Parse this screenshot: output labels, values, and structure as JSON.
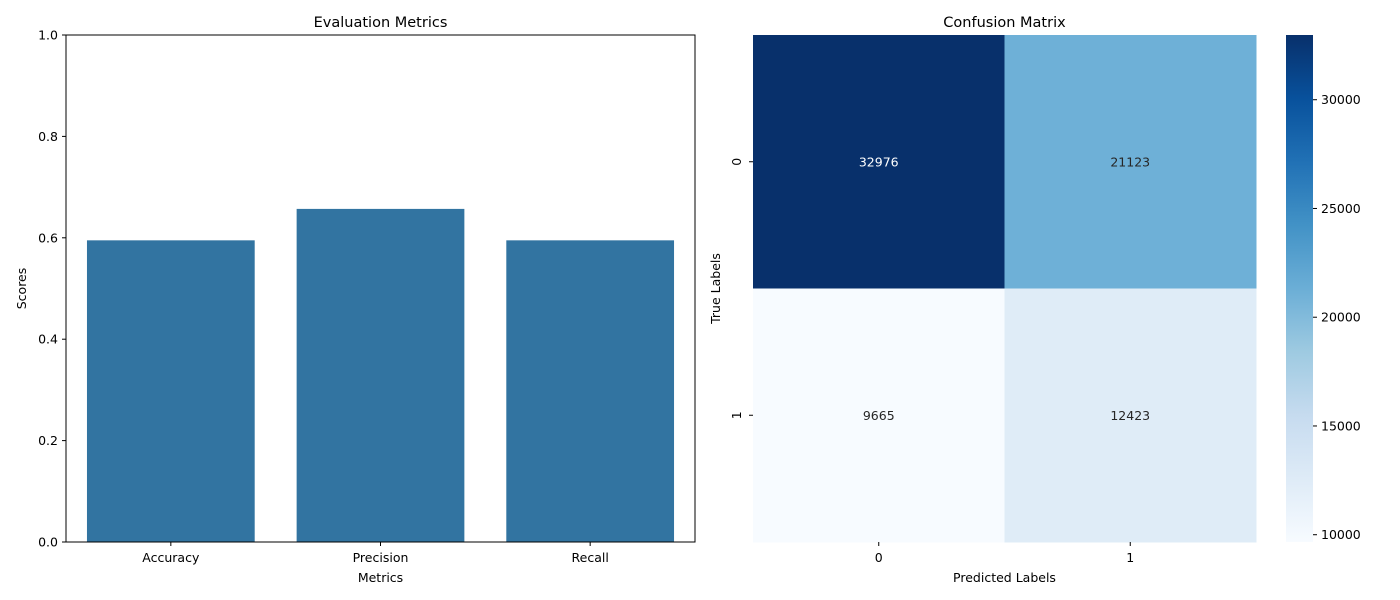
{
  "chart_data": [
    {
      "type": "bar",
      "title": "Evaluation Metrics",
      "xlabel": "Metrics",
      "ylabel": "Scores",
      "categories": [
        "Accuracy",
        "Precision",
        "Recall"
      ],
      "values": [
        0.595,
        0.657,
        0.595
      ],
      "ylim": [
        0,
        1
      ],
      "yticks": [
        "0.0",
        "0.2",
        "0.4",
        "0.6",
        "0.8",
        "1.0"
      ],
      "bar_color": "#3274a1",
      "grid": false
    },
    {
      "type": "heatmap",
      "title": "Confusion Matrix",
      "xlabel": "Predicted Labels",
      "ylabel": "True Labels",
      "x_categories": [
        "0",
        "1"
      ],
      "y_categories": [
        "0",
        "1"
      ],
      "values": [
        [
          32976,
          21123
        ],
        [
          9665,
          12423
        ]
      ],
      "colormap": "Blues",
      "colorbar": {
        "range": [
          9665,
          32976
        ],
        "ticks": [
          "10000",
          "15000",
          "20000",
          "25000",
          "30000"
        ]
      },
      "annotation_colors": {
        "dark_cell": "#ffffff",
        "light_cell": "#262626"
      }
    }
  ]
}
